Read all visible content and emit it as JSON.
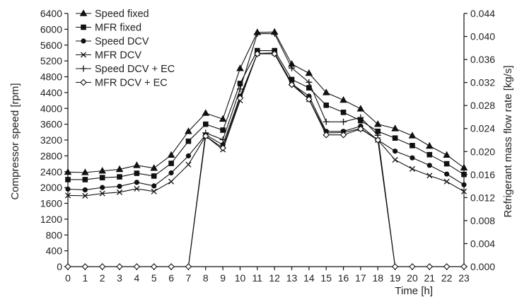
{
  "chart_data": {
    "type": "line",
    "x": [
      0,
      1,
      2,
      3,
      4,
      5,
      6,
      7,
      8,
      9,
      10,
      11,
      12,
      13,
      14,
      15,
      16,
      17,
      18,
      19,
      20,
      21,
      22,
      23
    ],
    "xlabel": "Time [h]",
    "ylabel_left": "Compressor speed [rpm]",
    "ylabel_right": "Refrigerant mass flow rate [kg/s]",
    "ylim_left": [
      0,
      6400
    ],
    "ylim_right": [
      0,
      0.044
    ],
    "yticks_left": [
      "0",
      "400",
      "800",
      "1200",
      "1600",
      "2000",
      "2400",
      "2800",
      "3200",
      "3600",
      "4000",
      "4400",
      "4800",
      "5200",
      "5600",
      "6000",
      "6400"
    ],
    "yticks_right": [
      "0.000",
      "0.004",
      "0.008",
      "0.012",
      "0.016",
      "0.020",
      "0.024",
      "0.028",
      "0.032",
      "0.036",
      "0.040",
      "0.044"
    ],
    "xticks": [
      "0",
      "1",
      "2",
      "3",
      "4",
      "5",
      "6",
      "7",
      "8",
      "9",
      "10",
      "11",
      "12",
      "13",
      "14",
      "15",
      "16",
      "17",
      "18",
      "19",
      "20",
      "21",
      "22",
      "23"
    ],
    "grid": false,
    "legend_position": "top-left",
    "series": [
      {
        "name": "Speed fixed",
        "axis": "left",
        "marker": "triangle",
        "values": [
          2390,
          2380,
          2420,
          2460,
          2560,
          2490,
          2820,
          3420,
          3880,
          3730,
          5010,
          5920,
          5930,
          5120,
          4890,
          4400,
          4210,
          3990,
          3600,
          3490,
          3310,
          3050,
          2820,
          2500
        ]
      },
      {
        "name": "MFR fixed",
        "axis": "left",
        "marker": "square",
        "values": [
          2200,
          2200,
          2250,
          2270,
          2360,
          2290,
          2610,
          3170,
          3600,
          3450,
          4630,
          5460,
          5460,
          4730,
          4520,
          4080,
          3900,
          3690,
          3420,
          3250,
          3060,
          2830,
          2600,
          2330
        ]
      },
      {
        "name": "Speed DCV",
        "axis": "left",
        "marker": "circle",
        "values": [
          1960,
          1940,
          2000,
          2030,
          2130,
          2040,
          2370,
          2800,
          3330,
          3080,
          4310,
          5380,
          5400,
          4620,
          4310,
          3420,
          3420,
          3550,
          3200,
          2920,
          2750,
          2560,
          2340,
          2070
        ]
      },
      {
        "name": "MFR DCV",
        "axis": "left",
        "marker": "x",
        "values": [
          1800,
          1790,
          1850,
          1880,
          1970,
          1900,
          2150,
          2580,
          3300,
          2960,
          4200,
          5390,
          5400,
          4640,
          4230,
          3380,
          3390,
          3490,
          3200,
          2700,
          2470,
          2300,
          2150,
          1900
        ]
      },
      {
        "name": "Speed DCV + EC",
        "axis": "left",
        "marker": "plus",
        "values": [
          0,
          0,
          0,
          0,
          0,
          0,
          0,
          0,
          3380,
          3210,
          4490,
          5890,
          5890,
          5020,
          4660,
          3660,
          3660,
          3770,
          3320,
          0,
          0,
          0,
          0,
          0
        ]
      },
      {
        "name": "MFR DCV + EC",
        "axis": "left",
        "marker": "diamond-open",
        "values": [
          0,
          0,
          0,
          0,
          0,
          0,
          0,
          0,
          3300,
          3000,
          4260,
          5380,
          5380,
          4600,
          4230,
          3330,
          3330,
          3480,
          3200,
          0,
          0,
          0,
          0,
          0
        ]
      }
    ]
  }
}
